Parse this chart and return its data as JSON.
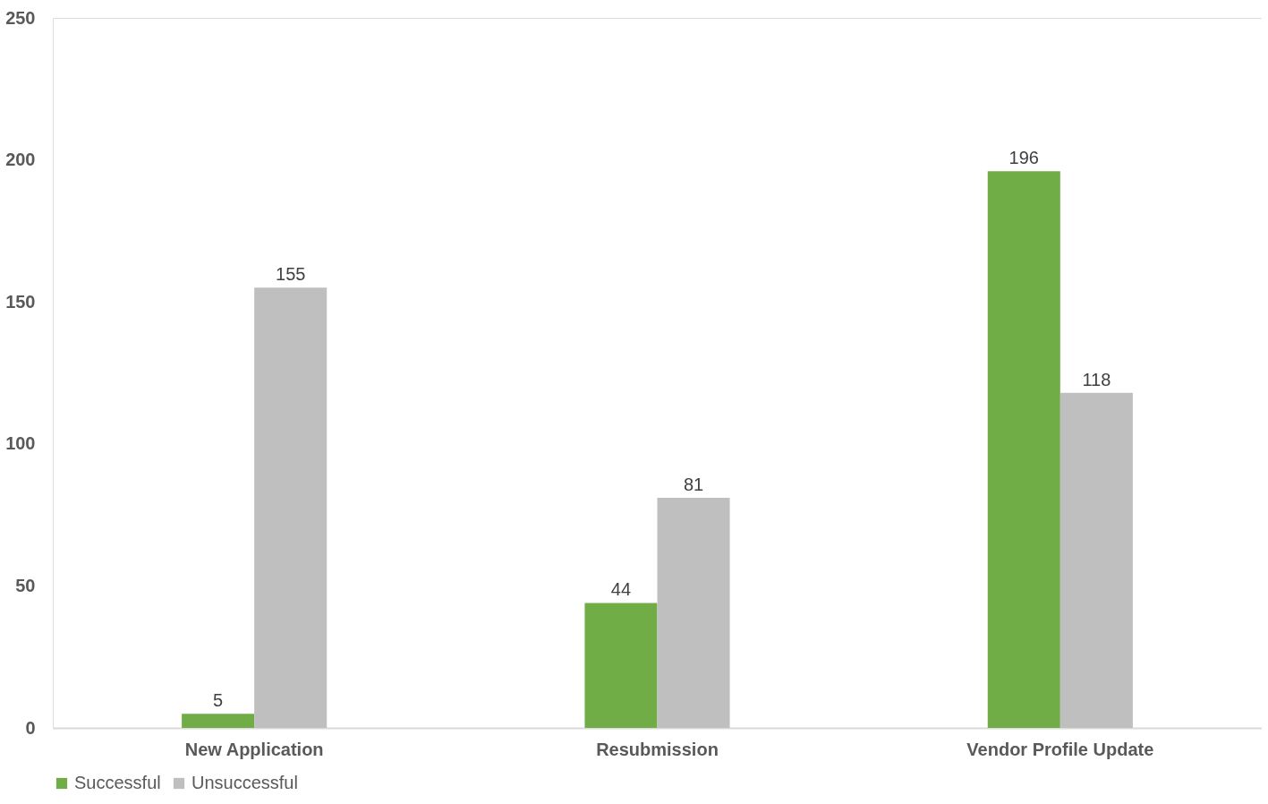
{
  "chart_data": {
    "type": "bar",
    "categories": [
      "New Application",
      "Resubmission",
      "Vendor Profile Update"
    ],
    "series": [
      {
        "name": "Successful",
        "color": "#70ad47",
        "values": [
          5,
          44,
          196
        ]
      },
      {
        "name": "Unsuccessful",
        "color": "#bfbfbf",
        "values": [
          155,
          81,
          118
        ]
      }
    ],
    "ylim": [
      0,
      250
    ],
    "yticks": [
      0,
      50,
      100,
      150,
      200,
      250
    ],
    "grid": false,
    "legend": "bottom",
    "data_labels": true
  }
}
